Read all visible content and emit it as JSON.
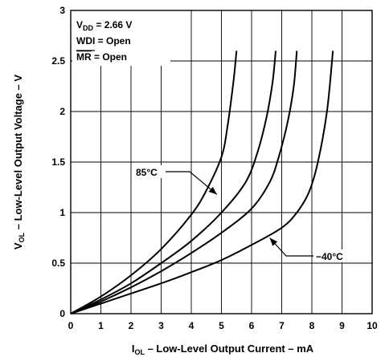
{
  "chart_data": {
    "type": "line",
    "xlabel": {
      "main": "I",
      "sub": "OL",
      "rest": " – Low-Level Output Current – mA"
    },
    "ylabel": {
      "main": "V",
      "sub": "OL",
      "rest": " – Low-Level Output Voltage – V"
    },
    "xlim": [
      0,
      10
    ],
    "ylim": [
      0,
      3
    ],
    "xticks": [
      0,
      1,
      2,
      3,
      4,
      5,
      6,
      7,
      8,
      9,
      10
    ],
    "yticks": [
      0,
      0.5,
      1,
      1.5,
      2,
      2.5,
      3
    ],
    "xtick_labels": [
      "0",
      "1",
      "2",
      "3",
      "4",
      "5",
      "6",
      "7",
      "8",
      "9",
      "10"
    ],
    "ytick_labels": [
      "0",
      "0.5",
      "1",
      "1.5",
      "2",
      "2.5",
      "3"
    ],
    "grid": true,
    "conditions": [
      {
        "main": "V",
        "sub": "DD",
        "rest": " = 2.66 V"
      },
      {
        "main": "WDI",
        "sub": "",
        "rest": " = Open"
      },
      {
        "main": "MR",
        "sub": "",
        "rest": " = Open",
        "overline": true
      }
    ],
    "series": [
      {
        "x": [
          0,
          1,
          2,
          3,
          4,
          4.5,
          5,
          5.2,
          5.4,
          5.5
        ],
        "y": [
          0,
          0.17,
          0.38,
          0.64,
          0.98,
          1.22,
          1.55,
          1.85,
          2.3,
          2.6
        ]
      },
      {
        "x": [
          0,
          1,
          2,
          3,
          4,
          5,
          5.8,
          6.2,
          6.5,
          6.7,
          6.8
        ],
        "y": [
          0,
          0.14,
          0.3,
          0.5,
          0.72,
          1.0,
          1.3,
          1.6,
          1.95,
          2.3,
          2.6
        ]
      },
      {
        "x": [
          0,
          1,
          2,
          3,
          4,
          5,
          6,
          6.6,
          6.9,
          7.2,
          7.4,
          7.5
        ],
        "y": [
          0,
          0.12,
          0.26,
          0.42,
          0.6,
          0.8,
          1.04,
          1.3,
          1.55,
          1.9,
          2.25,
          2.6
        ]
      },
      {
        "x": [
          0,
          1,
          2,
          3,
          4,
          5,
          6,
          7,
          7.5,
          7.9,
          8.2,
          8.5,
          8.7
        ],
        "y": [
          0,
          0.1,
          0.2,
          0.3,
          0.41,
          0.53,
          0.68,
          0.85,
          1.0,
          1.2,
          1.5,
          2.0,
          2.6
        ]
      }
    ],
    "annotations": [
      {
        "text": "85°C",
        "target_x": 4.85,
        "target_y": 1.18
      },
      {
        "text": "−40°C",
        "target_x": 6.6,
        "target_y": 0.75
      }
    ]
  }
}
